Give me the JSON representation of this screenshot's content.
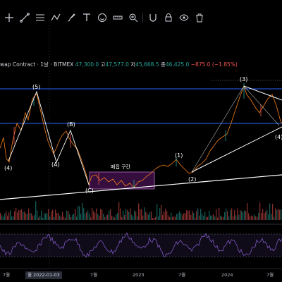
{
  "header": {
    "symbol_line": "wap Contract · 1날 · BITMEX",
    "ohlc_prefix": "47,300.0",
    "high_label": "고",
    "high_value": "47,577.0",
    "low_label": "저",
    "low_value": "45,668.5",
    "close_label": "종",
    "close_value": "46,425.0",
    "change_value": "−875.0 (−1.85%)"
  },
  "toolbar": {
    "tools": [
      {
        "name": "cross-cursor-icon"
      },
      {
        "name": "trend-line-icon"
      },
      {
        "name": "fib-tool-icon"
      },
      {
        "name": "pattern-tool-icon"
      },
      {
        "name": "brush-icon"
      },
      {
        "name": "text-tool-icon"
      },
      {
        "name": "emoji-icon"
      },
      {
        "name": "ruler-icon"
      },
      {
        "name": "zoom-icon"
      },
      {
        "name": "magnet-icon"
      },
      {
        "name": "lock-icon"
      },
      {
        "name": "eye-icon"
      },
      {
        "name": "trash-icon"
      }
    ]
  },
  "waves": {
    "w4_left": "(4)",
    "w5": "(5)",
    "wA": "(A)",
    "wB": "(B)",
    "wC": "(C)",
    "w1": "(1)",
    "w2": "(2)",
    "w3": "(3)",
    "w4_right": "(4)"
  },
  "zone_label": "매집 구간",
  "xaxis": {
    "t1": "7월",
    "t2": "월 2022-01-03",
    "t3": "7월",
    "t4": "2023",
    "t5": "7월",
    "t6": "2024",
    "t7": "7월"
  },
  "colors": {
    "background": "#000000",
    "hline": "#2962ff",
    "wave_line": "#ffffff",
    "zone": "#9c27b0",
    "up": "#26a69a",
    "down": "#ef5350",
    "rsi": "#7e57c2"
  }
}
